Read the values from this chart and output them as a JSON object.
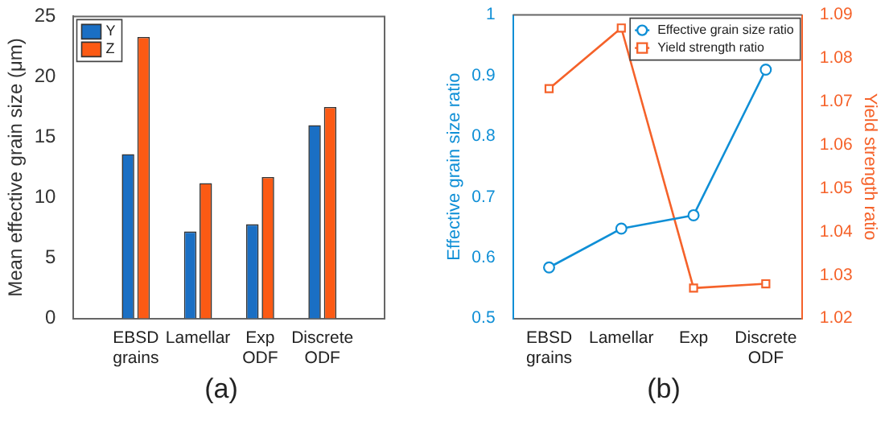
{
  "chart_data": [
    {
      "type": "bar",
      "ylabel": "Mean effective grain size (μm)",
      "categories": [
        "EBSD grains",
        "Lamellar",
        "Exp ODF",
        "Discrete ODF"
      ],
      "series": [
        {
          "name": "Y",
          "color": "#1a6fc4",
          "values": [
            13.6,
            7.2,
            7.8,
            16.0
          ]
        },
        {
          "name": "Z",
          "color": "#fc5a14",
          "values": [
            23.3,
            11.2,
            11.7,
            17.5
          ]
        }
      ],
      "ylim": [
        0,
        25
      ],
      "yticks": [
        0,
        5,
        10,
        15,
        20,
        25
      ],
      "grid": false,
      "legend": "top left",
      "annotations": [
        "(a)"
      ]
    },
    {
      "type": "line",
      "ylabel": "Effective grain size ratio",
      "y2label": "Yield strength ratio",
      "categories": [
        "EBSD grains",
        "Lamellar",
        "Exp",
        "Discrete ODF"
      ],
      "series": [
        {
          "name": "Effective grain size ratio",
          "color": "#0f8fd6",
          "values": [
            0.584,
            0.648,
            0.67,
            0.91
          ],
          "marker": "circle"
        },
        {
          "name": "Yield strength ratio",
          "color": "#f5622a",
          "values": [
            1.073,
            1.087,
            1.027,
            1.028
          ],
          "marker": "square",
          "axis": "y2"
        }
      ],
      "ylim": [
        0.5,
        1
      ],
      "yticks": [
        0.5,
        0.6,
        0.7,
        0.8,
        0.9,
        1
      ],
      "y2lim": [
        1.02,
        1.09
      ],
      "y2ticks": [
        1.02,
        1.03,
        1.04,
        1.05,
        1.06,
        1.07,
        1.08,
        1.09
      ],
      "grid": false,
      "legend": "top right",
      "line_style": "solid",
      "annotations": [
        "(b)"
      ]
    }
  ]
}
